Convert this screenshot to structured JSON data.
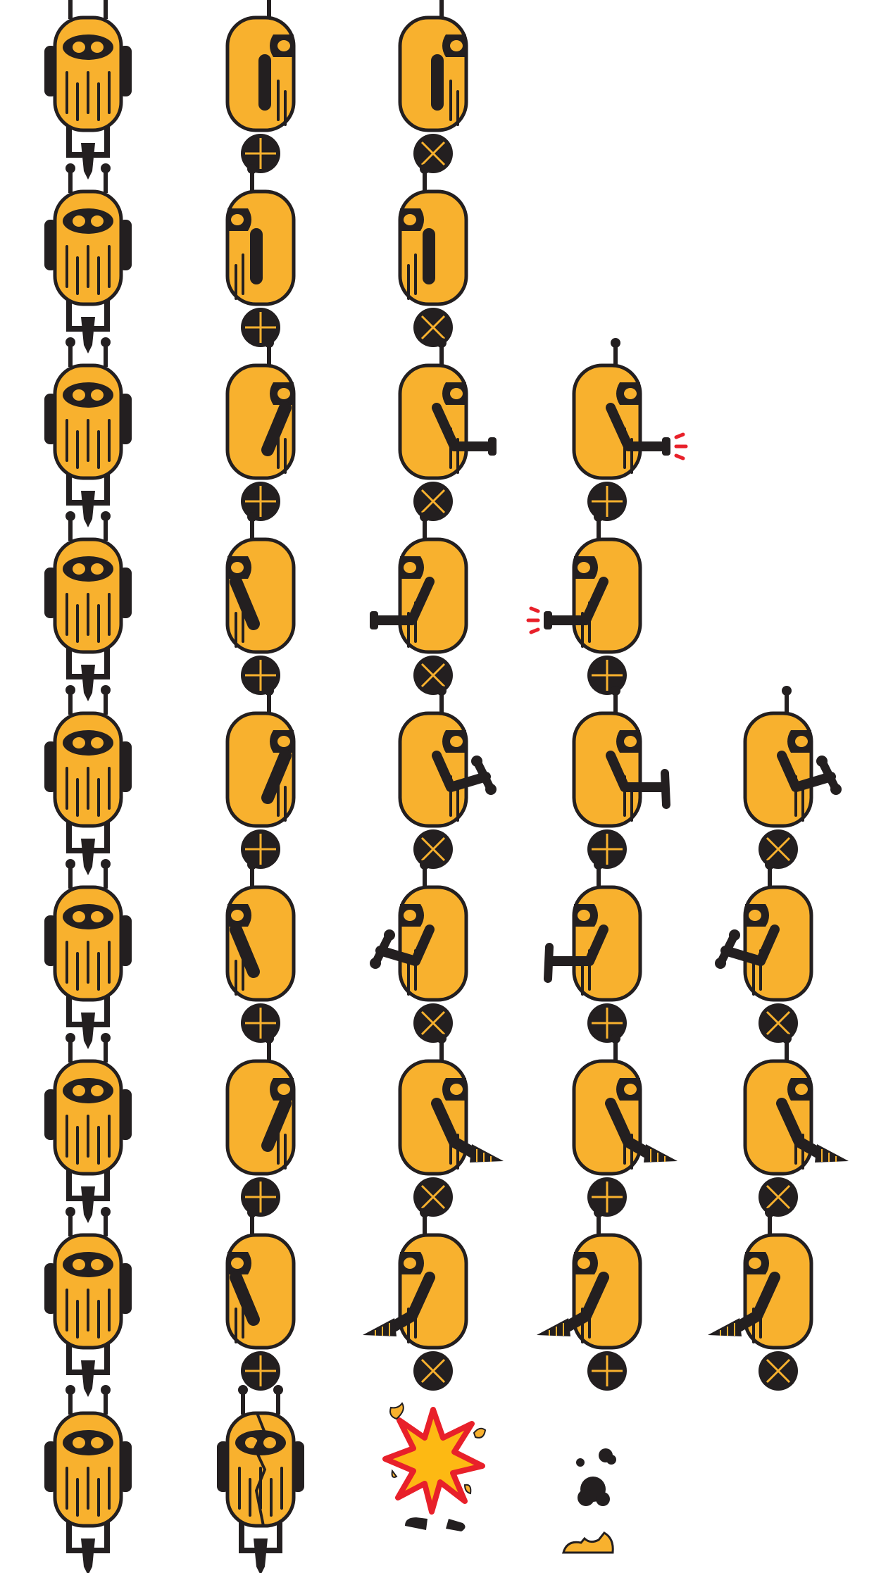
{
  "sheet": {
    "name": "robot-sprite-sheet",
    "colors": {
      "body": "#F8B12E",
      "outline": "#231F20",
      "eye": "#F8B12E",
      "spark": "#E8202A",
      "flame": "#FDB913",
      "background": "#FFFFFF"
    },
    "frames": [
      {
        "type": "front",
        "row": 0
      },
      {
        "type": "front",
        "row": 1
      },
      {
        "type": "front",
        "row": 2
      },
      {
        "type": "front",
        "row": 3
      },
      {
        "type": "front",
        "row": 4
      },
      {
        "type": "front",
        "row": 5
      },
      {
        "type": "front",
        "row": 6
      },
      {
        "type": "front",
        "row": 7
      },
      {
        "type": "front",
        "row": 8
      },
      {
        "type": "side",
        "col": 1,
        "row": 0,
        "facing": "right",
        "wheel": "plus",
        "arm": "down"
      },
      {
        "type": "side",
        "col": 1,
        "row": 1,
        "facing": "left",
        "wheel": "plus",
        "arm": "down"
      },
      {
        "type": "side",
        "col": 1,
        "row": 2,
        "facing": "right",
        "wheel": "plus",
        "arm": "diag"
      },
      {
        "type": "side",
        "col": 1,
        "row": 3,
        "facing": "left",
        "wheel": "plus",
        "arm": "diag"
      },
      {
        "type": "side",
        "col": 1,
        "row": 4,
        "facing": "right",
        "wheel": "plus",
        "arm": "diag"
      },
      {
        "type": "side",
        "col": 1,
        "row": 5,
        "facing": "left",
        "wheel": "plus",
        "arm": "diag"
      },
      {
        "type": "side",
        "col": 1,
        "row": 6,
        "facing": "right",
        "wheel": "plus",
        "arm": "diag"
      },
      {
        "type": "side",
        "col": 1,
        "row": 7,
        "facing": "left",
        "wheel": "plus",
        "arm": "diag"
      },
      {
        "type": "front-cracked",
        "col": 1,
        "row": 8
      },
      {
        "type": "side",
        "col": 2,
        "row": 0,
        "facing": "right",
        "wheel": "x",
        "arm": "down"
      },
      {
        "type": "side",
        "col": 2,
        "row": 1,
        "facing": "left",
        "wheel": "x",
        "arm": "down"
      },
      {
        "type": "side",
        "col": 2,
        "row": 2,
        "facing": "right",
        "wheel": "x",
        "arm": "gun"
      },
      {
        "type": "side",
        "col": 2,
        "row": 3,
        "facing": "left",
        "wheel": "x",
        "arm": "gun"
      },
      {
        "type": "side",
        "col": 2,
        "row": 4,
        "facing": "right",
        "wheel": "x",
        "arm": "hammer"
      },
      {
        "type": "side",
        "col": 2,
        "row": 5,
        "facing": "left",
        "wheel": "x",
        "arm": "hammer"
      },
      {
        "type": "side",
        "col": 2,
        "row": 6,
        "facing": "right",
        "wheel": "x",
        "arm": "drill"
      },
      {
        "type": "side",
        "col": 2,
        "row": 7,
        "facing": "left",
        "wheel": "x",
        "arm": "drill"
      },
      {
        "type": "explosion",
        "col": 2,
        "row": 8
      },
      {
        "type": "side",
        "col": 3,
        "row": 2,
        "facing": "right",
        "wheel": "plus",
        "arm": "gun-fire"
      },
      {
        "type": "side",
        "col": 3,
        "row": 3,
        "facing": "left",
        "wheel": "plus",
        "arm": "gun-fire"
      },
      {
        "type": "side",
        "col": 3,
        "row": 4,
        "facing": "right",
        "wheel": "plus",
        "arm": "hammer-down"
      },
      {
        "type": "side",
        "col": 3,
        "row": 5,
        "facing": "left",
        "wheel": "plus",
        "arm": "hammer-down"
      },
      {
        "type": "side",
        "col": 3,
        "row": 6,
        "facing": "right",
        "wheel": "plus",
        "arm": "drill"
      },
      {
        "type": "side",
        "col": 3,
        "row": 7,
        "facing": "left",
        "wheel": "plus",
        "arm": "drill"
      },
      {
        "type": "debris",
        "col": 3,
        "row": 8
      },
      {
        "type": "side",
        "col": 4,
        "row": 4,
        "facing": "right",
        "wheel": "x",
        "arm": "hammer"
      },
      {
        "type": "side",
        "col": 4,
        "row": 5,
        "facing": "left",
        "wheel": "x",
        "arm": "hammer"
      },
      {
        "type": "side",
        "col": 4,
        "row": 6,
        "facing": "right",
        "wheel": "x",
        "arm": "drill"
      },
      {
        "type": "side",
        "col": 4,
        "row": 7,
        "facing": "left",
        "wheel": "x",
        "arm": "drill"
      }
    ]
  }
}
